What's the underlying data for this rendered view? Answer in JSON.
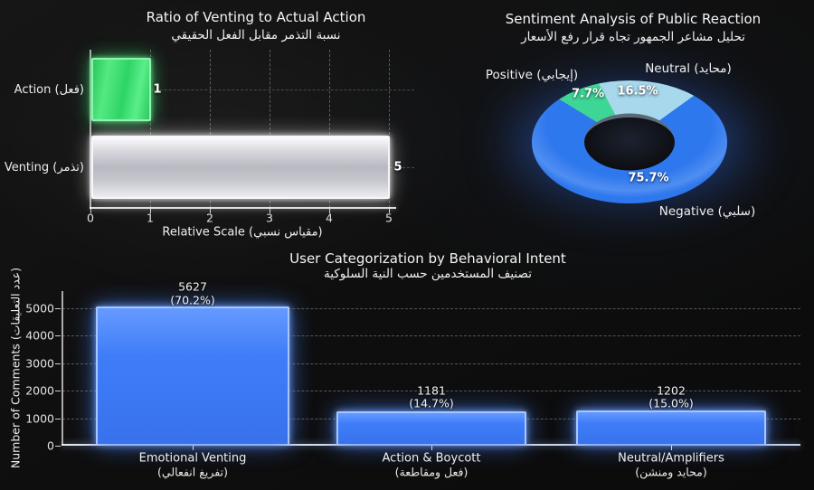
{
  "background_color": "#0f0f0f",
  "chart_data": [
    {
      "type": "bar",
      "orientation": "horizontal",
      "title": "Ratio of Venting to Actual Action",
      "subtitle": "نسبة التذمر مقابل الفعل الحقيقي",
      "xlabel": "Relative Scale (مقياس نسبي)",
      "categories": [
        "Action (فعل)",
        "Venting (تذمر)"
      ],
      "values": [
        1,
        5
      ],
      "value_labels": [
        "1",
        "5"
      ],
      "colors": [
        "#2dd465",
        "#d9d9df"
      ],
      "xlim": [
        0,
        5
      ],
      "x_ticks": [
        0,
        1,
        2,
        3,
        4,
        5
      ],
      "grid": true,
      "legend": false
    },
    {
      "type": "pie",
      "donut": true,
      "title": "Sentiment Analysis of Public Reaction",
      "subtitle": "تحليل مشاعر الجمهور تجاه قرار رفع الأسعار",
      "labels": [
        "Positive (إيجابي)",
        "Neutral (محايد)",
        "Negative (سلبي)"
      ],
      "values": [
        7.7,
        16.5,
        75.7
      ],
      "pct_labels": [
        "7.7%",
        "16.5%",
        "75.7%"
      ],
      "colors": [
        "#3ed696",
        "#a8d8ec",
        "#2e78ee"
      ],
      "legend": false
    },
    {
      "type": "bar",
      "orientation": "vertical",
      "title": "User Categorization by Behavioral Intent",
      "subtitle": "تصنيف المستخدمين حسب النية السلوكية",
      "ylabel": "Number of Comments (عدد التعليقات)",
      "categories_en": [
        "Emotional Venting",
        "Action & Boycott",
        "Neutral/Amplifiers"
      ],
      "categories_ar": [
        "(تفريغ انفعالي)",
        "(فعل ومقاطعة)",
        "(محايد ومنشن)"
      ],
      "values": [
        5627,
        1181,
        1202
      ],
      "count_labels": [
        "5627",
        "1181",
        "1202"
      ],
      "pct_labels": [
        "(70.2%)",
        "(14.7%)",
        "(15.0%)"
      ],
      "bar_color": "#3e7ef7",
      "y_ticks": [
        0,
        1000,
        2000,
        3000,
        4000,
        5000
      ],
      "ylim": [
        0,
        5000
      ],
      "grid": true,
      "legend": false
    }
  ]
}
